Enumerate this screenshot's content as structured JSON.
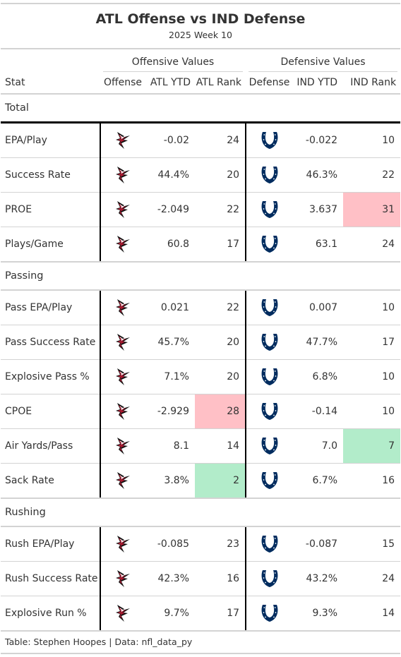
{
  "title": "ATL Offense vs IND Defense",
  "subtitle": "2025 Week 10",
  "spanners": {
    "offense": "Offensive Values",
    "defense": "Defensive Values"
  },
  "columns": {
    "stat": "Stat",
    "offense": "Offense",
    "atl_ytd": "ATL YTD",
    "atl_rank": "ATL Rank",
    "defense": "Defense",
    "ind_ytd": "IND YTD",
    "ind_rank": "IND Rank"
  },
  "icons": {
    "offense": "falcons-logo-icon",
    "defense": "colts-horseshoe-icon"
  },
  "colors": {
    "bad_rank": "#ffc0c6",
    "good_rank": "#b2ecca",
    "colts_blue": "#002C5F",
    "falcons_red": "#A71930"
  },
  "groups": [
    {
      "label": "Total",
      "rows": [
        {
          "stat": "EPA/Play",
          "atl_ytd": "-0.02",
          "atl_rank": "24",
          "ind_ytd": "-0.022",
          "ind_rank": "10"
        },
        {
          "stat": "Success Rate",
          "atl_ytd": "44.4%",
          "atl_rank": "20",
          "ind_ytd": "46.3%",
          "ind_rank": "22"
        },
        {
          "stat": "PROE",
          "atl_ytd": "-2.049",
          "atl_rank": "22",
          "ind_ytd": "3.637",
          "ind_rank": "31",
          "ind_highlight": "bad"
        },
        {
          "stat": "Plays/Game",
          "atl_ytd": "60.8",
          "atl_rank": "17",
          "ind_ytd": "63.1",
          "ind_rank": "24"
        }
      ]
    },
    {
      "label": "Passing",
      "rows": [
        {
          "stat": "Pass EPA/Play",
          "atl_ytd": "0.021",
          "atl_rank": "22",
          "ind_ytd": "0.007",
          "ind_rank": "10"
        },
        {
          "stat": "Pass Success Rate",
          "atl_ytd": "45.7%",
          "atl_rank": "20",
          "ind_ytd": "47.7%",
          "ind_rank": "17"
        },
        {
          "stat": "Explosive Pass %",
          "atl_ytd": "7.1%",
          "atl_rank": "20",
          "ind_ytd": "6.8%",
          "ind_rank": "10"
        },
        {
          "stat": "CPOE",
          "atl_ytd": "-2.929",
          "atl_rank": "28",
          "atl_highlight": "bad",
          "ind_ytd": "-0.14",
          "ind_rank": "10"
        },
        {
          "stat": "Air Yards/Pass",
          "atl_ytd": "8.1",
          "atl_rank": "14",
          "ind_ytd": "7.0",
          "ind_rank": "7",
          "ind_highlight": "good"
        },
        {
          "stat": "Sack Rate",
          "atl_ytd": "3.8%",
          "atl_rank": "2",
          "atl_highlight": "good",
          "ind_ytd": "6.7%",
          "ind_rank": "16"
        }
      ]
    },
    {
      "label": "Rushing",
      "rows": [
        {
          "stat": "Rush EPA/Play",
          "atl_ytd": "-0.085",
          "atl_rank": "23",
          "ind_ytd": "-0.087",
          "ind_rank": "15"
        },
        {
          "stat": "Rush Success Rate",
          "atl_ytd": "42.3%",
          "atl_rank": "16",
          "ind_ytd": "43.2%",
          "ind_rank": "24"
        },
        {
          "stat": "Explosive Run %",
          "atl_ytd": "9.7%",
          "atl_rank": "17",
          "ind_ytd": "9.3%",
          "ind_rank": "14"
        }
      ]
    }
  ],
  "source_note": "Table: Stephen Hoopes | Data: nfl_data_py"
}
